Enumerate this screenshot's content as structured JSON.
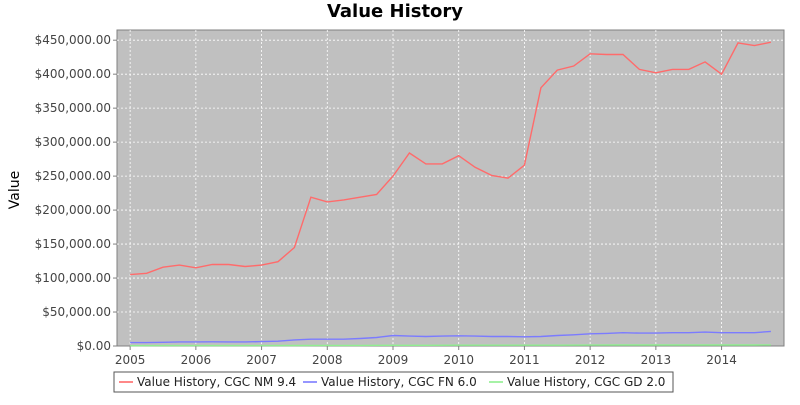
{
  "chart_data": {
    "type": "line",
    "title": "Value History",
    "xlabel": "",
    "ylabel": "Value",
    "xlim": [
      2004.8,
      2014.95
    ],
    "ylim": [
      0,
      465000
    ],
    "grid": true,
    "legend_position": "bottom",
    "x_ticks": [
      2005,
      2006,
      2007,
      2008,
      2009,
      2010,
      2011,
      2012,
      2013,
      2014
    ],
    "x_tick_labels": [
      "2005",
      "2006",
      "2007",
      "2008",
      "2009",
      "2010",
      "2011",
      "2012",
      "2013",
      "2014"
    ],
    "y_ticks": [
      0,
      50000,
      100000,
      150000,
      200000,
      250000,
      300000,
      350000,
      400000,
      450000
    ],
    "y_tick_labels": [
      "$0.00",
      "$50,000.00",
      "$100,000.00",
      "$150,000.00",
      "$200,000.00",
      "$250,000.00",
      "$300,000.00",
      "$350,000.00",
      "$400,000.00",
      "$450,000.00"
    ],
    "series": [
      {
        "name": "Value History, CGC NM 9.4",
        "color": "#ff6b6b",
        "x": [
          2005.0,
          2005.25,
          2005.5,
          2005.75,
          2006.0,
          2006.25,
          2006.5,
          2006.75,
          2007.0,
          2007.25,
          2007.5,
          2007.75,
          2008.0,
          2008.25,
          2008.5,
          2008.75,
          2009.0,
          2009.25,
          2009.5,
          2009.75,
          2010.0,
          2010.25,
          2010.5,
          2010.75,
          2011.0,
          2011.25,
          2011.5,
          2011.75,
          2012.0,
          2012.25,
          2012.5,
          2012.75,
          2013.0,
          2013.25,
          2013.5,
          2013.75,
          2014.0,
          2014.25,
          2014.5,
          2014.75
        ],
        "y": [
          105000,
          107000,
          116000,
          119000,
          115000,
          120000,
          120000,
          117000,
          119000,
          124000,
          145000,
          219000,
          212000,
          215000,
          219000,
          223000,
          250000,
          284000,
          268000,
          268000,
          280000,
          263000,
          251000,
          247000,
          266000,
          380000,
          406000,
          412000,
          430000,
          429000,
          429000,
          407000,
          402000,
          407000,
          407000,
          418000,
          400000,
          446000,
          442000,
          447000
        ]
      },
      {
        "name": "Value History, CGC FN 6.0",
        "color": "#7b7bff",
        "x": [
          2005.0,
          2005.25,
          2005.5,
          2005.75,
          2006.0,
          2006.25,
          2006.5,
          2006.75,
          2007.0,
          2007.25,
          2007.5,
          2007.75,
          2008.0,
          2008.25,
          2008.5,
          2008.75,
          2009.0,
          2009.25,
          2009.5,
          2009.75,
          2010.0,
          2010.25,
          2010.5,
          2010.75,
          2011.0,
          2011.25,
          2011.5,
          2011.75,
          2012.0,
          2012.25,
          2012.5,
          2012.75,
          2013.0,
          2013.25,
          2013.5,
          2013.75,
          2014.0,
          2014.25,
          2014.5,
          2014.75
        ],
        "y": [
          5000,
          5000,
          5500,
          6000,
          6000,
          6200,
          6000,
          6000,
          6500,
          7000,
          9000,
          10000,
          10000,
          10000,
          11000,
          12500,
          15500,
          14500,
          14000,
          14500,
          15000,
          14500,
          14000,
          14000,
          13500,
          14000,
          15500,
          16500,
          18000,
          18500,
          19500,
          19000,
          19000,
          19500,
          19500,
          20500,
          19500,
          19500,
          19500,
          21500
        ]
      },
      {
        "name": "Value History, CGC GD 2.0",
        "color": "#90ee90",
        "x": [
          2005.0,
          2005.5,
          2006.0,
          2006.5,
          2007.0,
          2007.5,
          2008.0,
          2008.5,
          2009.0,
          2009.5,
          2010.0,
          2010.5,
          2011.0,
          2011.5,
          2012.0,
          2012.5,
          2013.0,
          2013.5,
          2014.0,
          2014.5,
          2014.75
        ],
        "y": [
          500,
          550,
          600,
          600,
          650,
          800,
          900,
          950,
          1100,
          1100,
          1150,
          1150,
          1150,
          1250,
          1350,
          1450,
          1450,
          1500,
          1500,
          1500,
          1550
        ]
      }
    ]
  }
}
